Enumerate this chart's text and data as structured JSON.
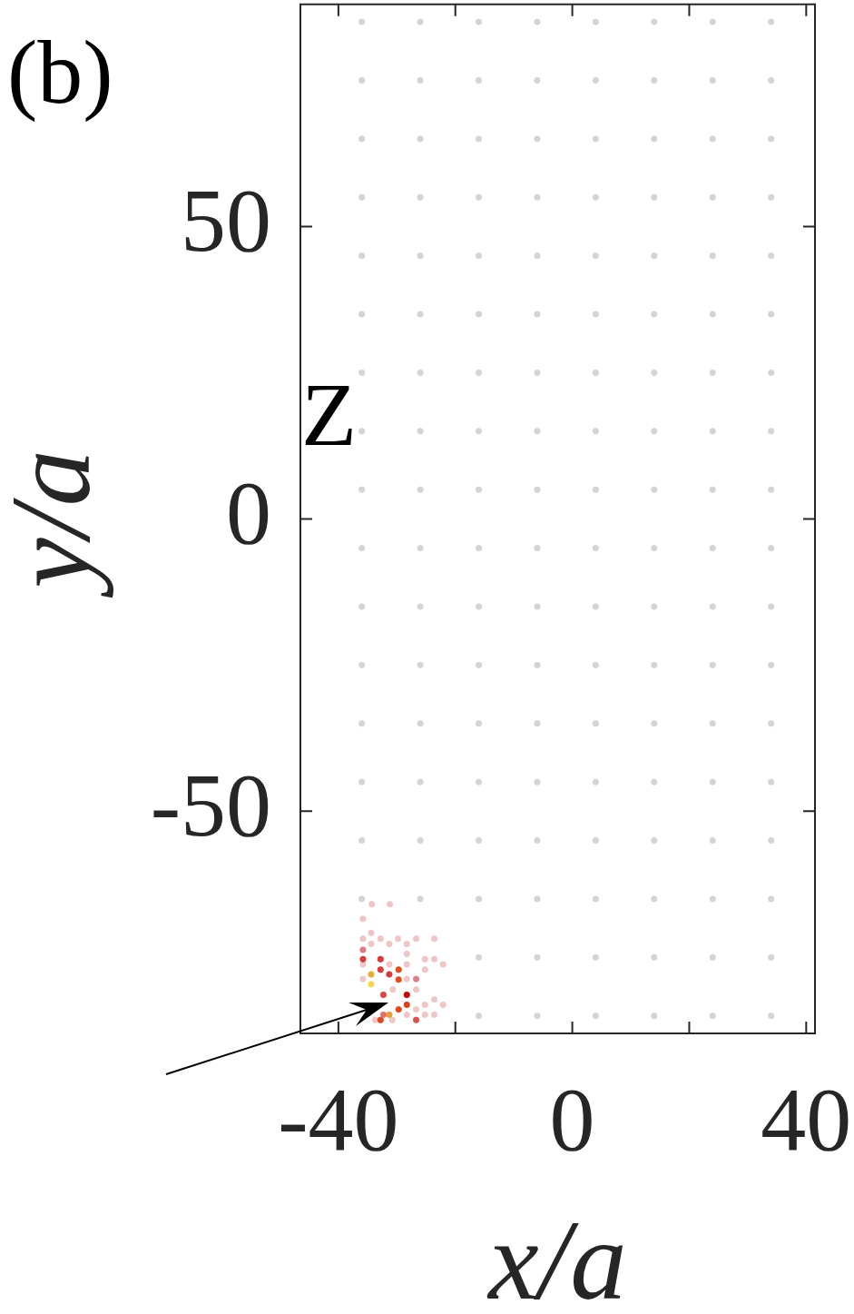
{
  "chart_data": {
    "type": "scatter",
    "title": "(b)",
    "xlabel": "x/a",
    "ylabel": "y/a",
    "annotations": [
      "Z"
    ],
    "xlim": [
      -46.5,
      41.5
    ],
    "ylim": [
      -88,
      88
    ],
    "xticks": [
      -40,
      {
        "value": -20,
        "label": null
      },
      0,
      {
        "value": 20,
        "label": null
      },
      40
    ],
    "yticks": [
      -50,
      0,
      50
    ],
    "marker": "circle",
    "series": [
      {
        "color": "#d4d4d4",
        "x": [
          -36,
          -36,
          -36,
          -36,
          -36,
          -36,
          -36,
          -36,
          -36,
          -36,
          -36,
          -36,
          -36,
          -36,
          -36,
          -36,
          -26,
          -26,
          -26,
          -26,
          -26,
          -26,
          -26,
          -26,
          -26,
          -26,
          -26,
          -26,
          -26,
          -26,
          -26,
          -26,
          -16,
          -16,
          -16,
          -16,
          -16,
          -16,
          -16,
          -16,
          -16,
          -16,
          -16,
          -16,
          -16,
          -16,
          -16,
          -16,
          -16,
          -16,
          -6,
          -6,
          -6,
          -6,
          -6,
          -6,
          -6,
          -6,
          -6,
          -6,
          -6,
          -6,
          -6,
          -6,
          -6,
          -6,
          -6,
          -6,
          4,
          4,
          4,
          4,
          4,
          4,
          4,
          4,
          4,
          4,
          4,
          4,
          4,
          4,
          4,
          4,
          4,
          4,
          14,
          14,
          14,
          14,
          14,
          14,
          14,
          14,
          14,
          14,
          14,
          14,
          14,
          14,
          14,
          14,
          14,
          14,
          24,
          24,
          24,
          24,
          24,
          24,
          24,
          24,
          24,
          24,
          24,
          24,
          24,
          24,
          24,
          24,
          24,
          24,
          34,
          34,
          34,
          34,
          34,
          34,
          34,
          34,
          34,
          34,
          34,
          34,
          34,
          34,
          34,
          34,
          34,
          34
        ],
        "values": [
          85,
          75,
          65,
          55,
          45,
          35,
          25,
          15,
          5,
          -5,
          -15,
          -25,
          -35,
          -45,
          -55,
          -65,
          85,
          75,
          65,
          55,
          45,
          35,
          25,
          15,
          5,
          -5,
          -15,
          -25,
          -35,
          -45,
          -55,
          -65,
          85,
          75,
          65,
          55,
          45,
          35,
          25,
          15,
          5,
          -5,
          -15,
          -25,
          -35,
          -45,
          -55,
          -65,
          -75,
          -85,
          85,
          75,
          65,
          55,
          45,
          35,
          25,
          15,
          5,
          -5,
          -15,
          -25,
          -35,
          -45,
          -55,
          -65,
          -75,
          -85,
          85,
          75,
          65,
          55,
          45,
          35,
          25,
          15,
          5,
          -5,
          -15,
          -25,
          -35,
          -45,
          -55,
          -65,
          -75,
          -85,
          85,
          75,
          65,
          55,
          45,
          35,
          25,
          15,
          5,
          -5,
          -15,
          -25,
          -35,
          -45,
          -55,
          -65,
          -75,
          -85,
          85,
          75,
          65,
          55,
          45,
          35,
          25,
          15,
          5,
          -5,
          -15,
          -25,
          -35,
          -45,
          -55,
          -65,
          -75,
          -85,
          85,
          75,
          65,
          55,
          45,
          35,
          25,
          15,
          5,
          -5,
          -15,
          -25,
          -35,
          -45,
          -55,
          -65,
          -75,
          -85
        ]
      },
      {
        "color": "#efc6c6",
        "x": [
          -34.3,
          -31.2,
          -35.8,
          -34.4,
          -35.8,
          -32.8,
          -29.8,
          -26.7,
          -23.6,
          -34.4,
          -31.3,
          -28.3,
          -28.3,
          -25.2,
          -23.6,
          -35.8,
          -31.3,
          -28.3,
          -22.1,
          -25.2,
          -35.8,
          -28.3,
          -30.7,
          -26.7,
          -23.6,
          -25.2,
          -22.1,
          -26.7,
          -28.3,
          -25.2,
          -23.6,
          -33.7,
          -30.8
        ],
        "values": [
          -65.9,
          -65.9,
          -68.4,
          -70.8,
          -71.8,
          -71.8,
          -71.8,
          -71.8,
          -71.8,
          -72.7,
          -72.7,
          -72.7,
          -74.4,
          -75.3,
          -75.3,
          -76.2,
          -76.2,
          -76.2,
          -76.2,
          -77.1,
          -78.7,
          -78.7,
          -80.5,
          -80.5,
          -82.2,
          -83.1,
          -83.1,
          -83.9,
          -84.8,
          -84.8,
          -84.8,
          -85.7,
          -85.7
        ]
      },
      {
        "colors": [
          "#dc7c84",
          "#d63a3a",
          "#d63a3a",
          "#d63a3a",
          "#e8ac3a",
          "#d63a3a",
          "#dc5020",
          "#dc5020",
          "#f2d84a",
          "#d64848",
          "#c80808",
          "#dc4020",
          "#dc4820",
          "#e6a035",
          "#dc4a20",
          "#d85050",
          "#e08088",
          "#e07070"
        ],
        "x": [
          -35.8,
          -35.8,
          -32.8,
          -32.8,
          -34.4,
          -31.3,
          -29.7,
          -29.7,
          -34.4,
          -32.3,
          -28.3,
          -28.3,
          -29.7,
          -31.3,
          -32.8,
          -26.7,
          -26.7,
          -32.3
        ],
        "values": [
          -73.7,
          -75.3,
          -75.3,
          -77.1,
          -77.9,
          -77.9,
          -77.1,
          -78.8,
          -79.6,
          -81.4,
          -81.4,
          -83.1,
          -83.9,
          -84.8,
          -85.7,
          -85.7,
          -78.7,
          -84.8
        ]
      }
    ]
  }
}
